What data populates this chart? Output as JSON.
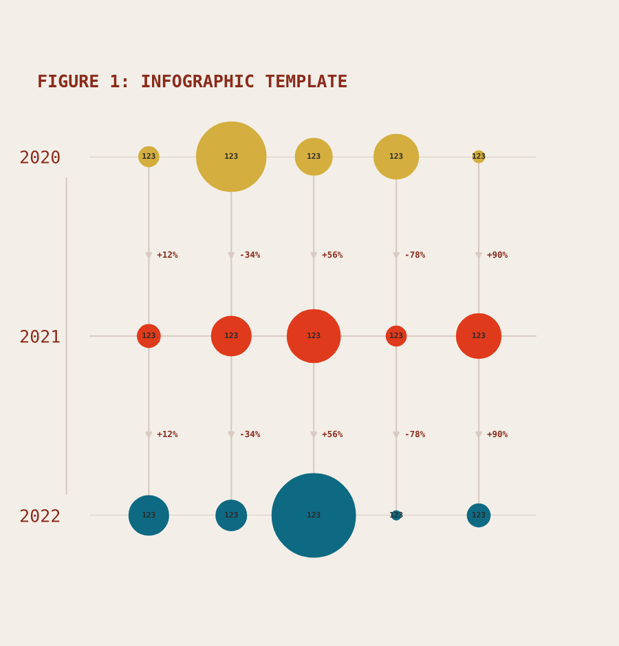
{
  "chart_data": {
    "type": "bubble",
    "title": "FIGURE 1: INFOGRAPHIC TEMPLATE",
    "categories": [
      null,
      null,
      null,
      null,
      null
    ],
    "ylim": [
      2022,
      2020
    ],
    "yticks": [
      2020,
      2021,
      2022
    ],
    "grid": true,
    "tick_labels": "y",
    "series": [
      {
        "color": "#d4ae3e",
        "values": [
          2020,
          2020,
          2020,
          2020,
          2020
        ],
        "sizes": [
          0.054,
          0.69,
          0.19,
          0.28,
          0.018
        ]
      },
      {
        "color": "#e03a1c",
        "values": [
          2021,
          2021,
          2021,
          2021,
          2021
        ],
        "sizes": [
          0.071,
          0.22,
          0.4,
          0.054,
          0.28
        ]
      },
      {
        "color": "#0e6a82",
        "values": [
          2022,
          2022,
          2022,
          2022,
          2022
        ],
        "sizes": [
          0.22,
          0.13,
          1,
          0.01,
          0.071
        ]
      }
    ],
    "annotations": [
      "123",
      "123",
      "123",
      "123",
      "123",
      "123",
      "123",
      "123",
      "123",
      "123",
      "123",
      "123",
      "123",
      "123",
      "123",
      "+12%",
      "-34%",
      "+56%",
      "-78%",
      "+90%",
      "+12%",
      "-34%",
      "+56%",
      "-78%",
      "+90%"
    ]
  }
}
